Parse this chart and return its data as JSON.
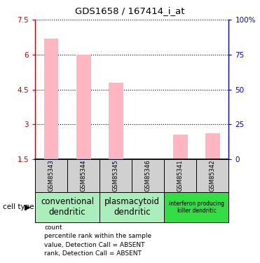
{
  "title": "GDS1658 / 167414_i_at",
  "samples": [
    "GSM85343",
    "GSM85344",
    "GSM85345",
    "GSM85346",
    "GSM85341",
    "GSM85342"
  ],
  "bar_values": [
    6.7,
    6.0,
    4.8,
    1.5,
    2.55,
    2.6
  ],
  "rank_values": [
    1.52,
    1.52,
    1.52,
    1.5,
    1.5,
    1.5
  ],
  "ylim_left": [
    1.5,
    7.5
  ],
  "yticks_left": [
    1.5,
    3.0,
    4.5,
    6.0,
    7.5
  ],
  "ytick_labels_left": [
    "1.5",
    "3",
    "4.5",
    "6",
    "7.5"
  ],
  "ylim_right": [
    0,
    100
  ],
  "yticks_right": [
    0,
    25,
    50,
    75,
    100
  ],
  "ytick_labels_right": [
    "0",
    "25",
    "50",
    "75",
    "100%"
  ],
  "bar_color": "#FFB6C1",
  "rank_color": "#AAAADD",
  "left_axis_color": "#CC0000",
  "right_axis_color": "#0000CC",
  "group_configs": [
    {
      "start": 0,
      "end": 2,
      "color": "#AAEEBB",
      "label": "conventional\ndendritic",
      "small": false
    },
    {
      "start": 2,
      "end": 4,
      "color": "#AAEEBB",
      "label": "plasmacytoid\ndendritic",
      "small": false
    },
    {
      "start": 4,
      "end": 6,
      "color": "#33DD44",
      "label": "interferon producing\nkiller dendritic",
      "small": true
    }
  ],
  "cell_type_label": "cell type",
  "legend_items": [
    {
      "color": "#CC0000",
      "label": "count"
    },
    {
      "color": "#0000CC",
      "label": "percentile rank within the sample"
    },
    {
      "color": "#FFB6C1",
      "label": "value, Detection Call = ABSENT"
    },
    {
      "color": "#AAAADD",
      "label": "rank, Detection Call = ABSENT"
    }
  ],
  "fig_width": 3.71,
  "fig_height": 3.75,
  "dpi": 100
}
